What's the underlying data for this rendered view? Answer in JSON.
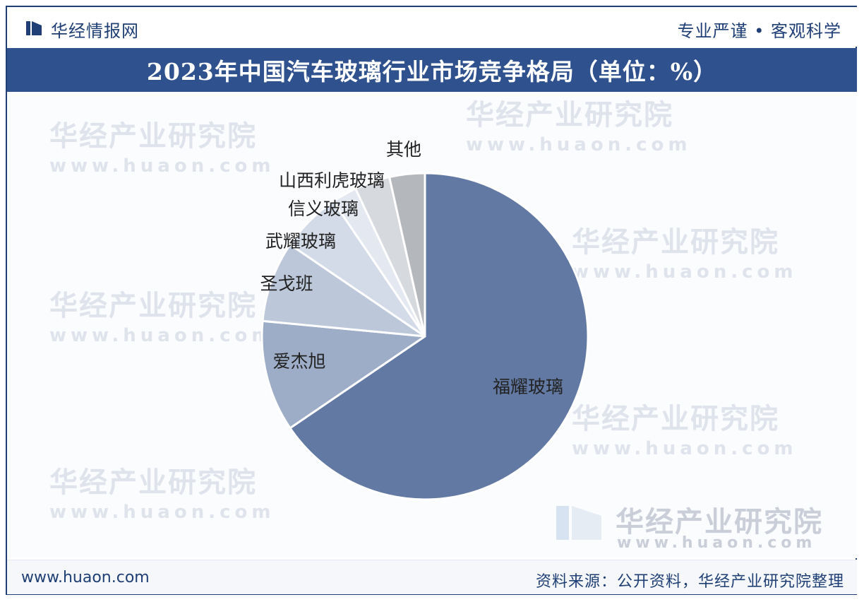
{
  "header": {
    "brand": "华经情报网",
    "slogan": "专业严谨 • 客观科学"
  },
  "title": "2023年中国汽车玻璃行业市场竞争格局（单位：%）",
  "watermark": {
    "text": "华经产业研究院",
    "url": "www.huaon.com"
  },
  "footer": {
    "url": "www.huaon.com",
    "source": "资料来源：公开资料，华经产业研究院整理"
  },
  "colors": {
    "title_bg": "#2f528f",
    "brand": "#1f3f75",
    "slices": [
      "#6279a3",
      "#9dadc8",
      "#bcc7da",
      "#d3dbe8",
      "#e4e9f1",
      "#d6d9de",
      "#b4b7bc"
    ]
  },
  "chart_data": {
    "type": "pie",
    "title": "2023年中国汽车玻璃行业市场竞争格局（单位：%）",
    "unit": "%",
    "start_angle": "12 o'clock, clockwise",
    "labels_on_chart": true,
    "legend": "none",
    "slices": [
      {
        "label": "福耀玻璃",
        "value": 65.5
      },
      {
        "label": "爱杰旭",
        "value": 11.0
      },
      {
        "label": "圣戈班",
        "value": 8.0
      },
      {
        "label": "武耀玻璃",
        "value": 6.0
      },
      {
        "label": "信义玻璃",
        "value": 2.5
      },
      {
        "label": "山西利虎玻璃",
        "value": 3.5
      },
      {
        "label": "其他",
        "value": 3.5
      }
    ]
  }
}
